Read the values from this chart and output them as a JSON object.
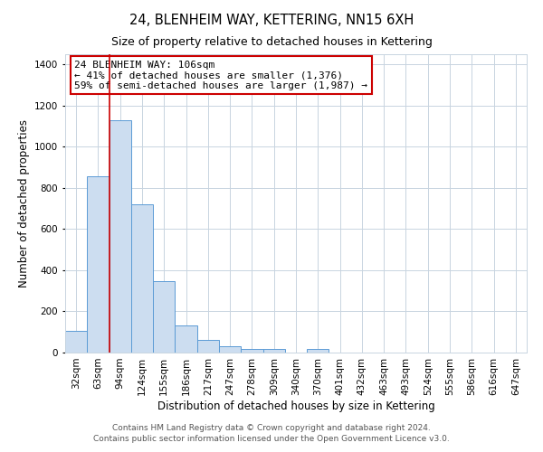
{
  "title": "24, BLENHEIM WAY, KETTERING, NN15 6XH",
  "subtitle": "Size of property relative to detached houses in Kettering",
  "xlabel": "Distribution of detached houses by size in Kettering",
  "ylabel": "Number of detached properties",
  "bar_labels": [
    "32sqm",
    "63sqm",
    "94sqm",
    "124sqm",
    "155sqm",
    "186sqm",
    "217sqm",
    "247sqm",
    "278sqm",
    "309sqm",
    "340sqm",
    "370sqm",
    "401sqm",
    "432sqm",
    "463sqm",
    "493sqm",
    "524sqm",
    "555sqm",
    "586sqm",
    "616sqm",
    "647sqm"
  ],
  "bar_values": [
    105,
    855,
    1130,
    720,
    345,
    130,
    60,
    30,
    17,
    16,
    0,
    16,
    0,
    0,
    0,
    0,
    0,
    0,
    0,
    0,
    0
  ],
  "bar_color": "#ccddf0",
  "bar_edge_color": "#5b9bd5",
  "vline_color": "#cc0000",
  "annotation_title": "24 BLENHEIM WAY: 106sqm",
  "annotation_line1": "← 41% of detached houses are smaller (1,376)",
  "annotation_line2": "59% of semi-detached houses are larger (1,987) →",
  "annotation_box_color": "#ffffff",
  "annotation_box_edge": "#cc0000",
  "ylim": [
    0,
    1450
  ],
  "yticks": [
    0,
    200,
    400,
    600,
    800,
    1000,
    1200,
    1400
  ],
  "footer1": "Contains HM Land Registry data © Crown copyright and database right 2024.",
  "footer2": "Contains public sector information licensed under the Open Government Licence v3.0.",
  "bg_color": "#ffffff",
  "grid_color": "#c8d4e0",
  "title_fontsize": 10.5,
  "subtitle_fontsize": 9,
  "axis_label_fontsize": 8.5,
  "tick_fontsize": 7.5,
  "annotation_fontsize": 8,
  "footer_fontsize": 6.5
}
